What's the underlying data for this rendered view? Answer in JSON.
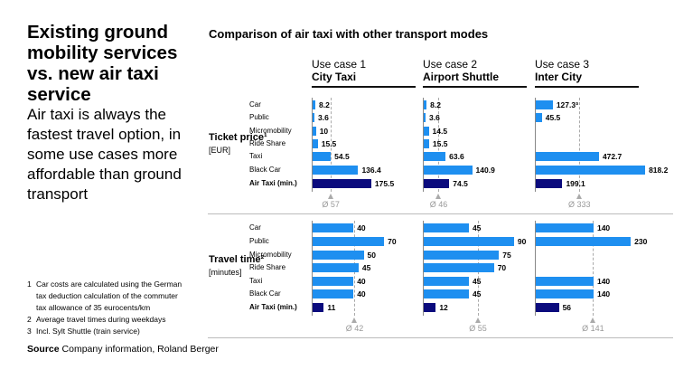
{
  "headline": "Existing ground mobility services vs. new air taxi service",
  "subline": "Air taxi is always the fastest travel option, in some use cases more affordable than ground transport",
  "footnotes": [
    {
      "n": "1",
      "text": "Car costs are calculated using the German",
      "text2": "tax deduction calculation of the commuter",
      "text3": "tax allowance of 35 eurocents/km"
    },
    {
      "n": "2",
      "text": "Average travel times during weekdays"
    },
    {
      "n": "3",
      "text": "Incl. Sylt Shuttle (train service)"
    }
  ],
  "source": {
    "label": "Source",
    "text": "Company information, Roland Berger"
  },
  "colors": {
    "ground": "#1e8ff0",
    "air_taxi": "#0b0b7d"
  },
  "chart_data": {
    "type": "bar",
    "orientation": "horizontal",
    "title": "Comparison of air taxi with other transport modes",
    "categories": [
      "Car",
      "Public",
      "Micromobility",
      "Ride Share",
      "Taxi",
      "Black Car",
      "Air Taxi (min.)"
    ],
    "use_cases": [
      {
        "label": "Use case 1",
        "name": "City Taxi"
      },
      {
        "label": "Use case 2",
        "name": "Airport Shuttle"
      },
      {
        "label": "Use case 3",
        "name": "Inter City"
      }
    ],
    "panels": [
      {
        "title": "Ticket price¹",
        "unit": "[EUR]",
        "series": [
          {
            "values": [
              8.2,
              3.6,
              10,
              15.5,
              54.5,
              136.4,
              175.5
            ],
            "labels": [
              "8.2",
              "3.6",
              "10",
              "15.5",
              "54.5",
              "136.4",
              "175.5"
            ],
            "average": 57,
            "average_label": "Ø 57"
          },
          {
            "values": [
              8.2,
              3.6,
              14.5,
              15.5,
              63.6,
              140.9,
              74.5
            ],
            "labels": [
              "8.2",
              "3.6",
              "14.5",
              "15.5",
              "63.6",
              "140.9",
              "74.5"
            ],
            "average": 46,
            "average_label": "Ø 46"
          },
          {
            "values": [
              127.3,
              45.5,
              null,
              null,
              472.7,
              818.2,
              199.1
            ],
            "labels": [
              "127.3³",
              "45.5",
              "",
              "",
              "472.7",
              "818.2",
              "199.1"
            ],
            "average": 333,
            "average_label": "Ø 333"
          }
        ]
      },
      {
        "title": "Travel time²",
        "unit": "[minutes]",
        "series": [
          {
            "values": [
              40,
              70,
              50,
              45,
              40,
              40,
              11
            ],
            "labels": [
              "40",
              "70",
              "50",
              "45",
              "40",
              "40",
              "11"
            ],
            "average": 42,
            "average_label": "Ø 42"
          },
          {
            "values": [
              45,
              90,
              75,
              70,
              45,
              45,
              12
            ],
            "labels": [
              "45",
              "90",
              "75",
              "70",
              "45",
              "45",
              "12"
            ],
            "average": 55,
            "average_label": "Ø 55"
          },
          {
            "values": [
              140,
              230,
              null,
              null,
              140,
              140,
              56
            ],
            "labels": [
              "140",
              "230",
              "",
              "",
              "140",
              "140",
              "56"
            ],
            "average": 141,
            "average_label": "Ø 141"
          }
        ]
      }
    ]
  }
}
